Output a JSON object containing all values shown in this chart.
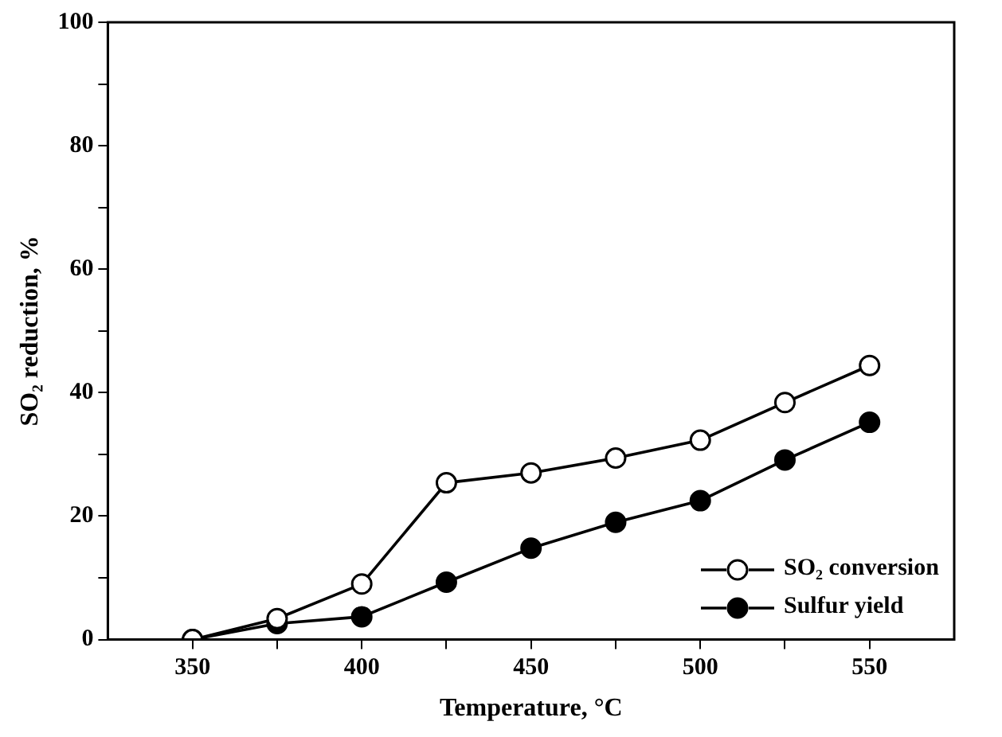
{
  "chart_data": {
    "type": "line",
    "xlabel": "Temperature, °C",
    "ylabel": "SO₂ reduction, %",
    "x": [
      350,
      375,
      400,
      425,
      450,
      475,
      500,
      525,
      550
    ],
    "series": [
      {
        "name": "SO₂ conversion",
        "color": "#ffffff",
        "values": [
          0,
          3.4,
          9.0,
          25.4,
          27.0,
          29.4,
          32.3,
          38.4,
          44.4
        ]
      },
      {
        "name": "Sulfur yield",
        "color": "#000000",
        "values": [
          0,
          2.6,
          3.7,
          9.3,
          14.8,
          19.0,
          22.5,
          29.1,
          35.2
        ]
      }
    ],
    "xlim": [
      325,
      575
    ],
    "xticks": [
      350,
      {
        "value": 375,
        "label": null
      },
      400,
      {
        "value": 425,
        "label": null
      },
      450,
      {
        "value": 475,
        "label": null
      },
      500,
      {
        "value": 525,
        "label": null
      },
      550
    ],
    "ylim": [
      0,
      100
    ],
    "yticks": [
      0,
      {
        "value": 10,
        "label": null
      },
      20,
      {
        "value": 30,
        "label": null
      },
      40,
      {
        "value": 50,
        "label": null
      },
      60,
      {
        "value": 70,
        "label": null
      },
      80,
      {
        "value": 90,
        "label": null
      },
      100
    ],
    "grid": false,
    "legend": "bottom right",
    "marker": "circle",
    "line_style": "solid"
  }
}
